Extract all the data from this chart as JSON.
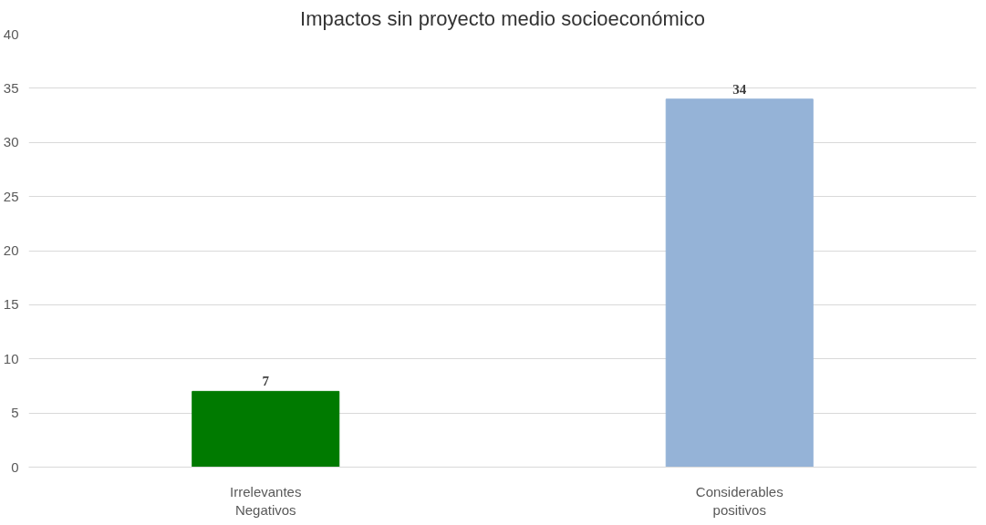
{
  "chart_data": {
    "type": "bar",
    "title": "Impactos sin proyecto medio socioeconómico",
    "categories": [
      "Irrelevantes\nNegativos",
      "Considerables\npositivos"
    ],
    "values": [
      7,
      34
    ],
    "colors": [
      "#007a00",
      "#95b3d7"
    ],
    "ylim": [
      0,
      40
    ],
    "yticks": [
      0,
      5,
      10,
      15,
      20,
      25,
      30,
      35,
      40
    ],
    "grid": "y",
    "data_labels": true
  }
}
